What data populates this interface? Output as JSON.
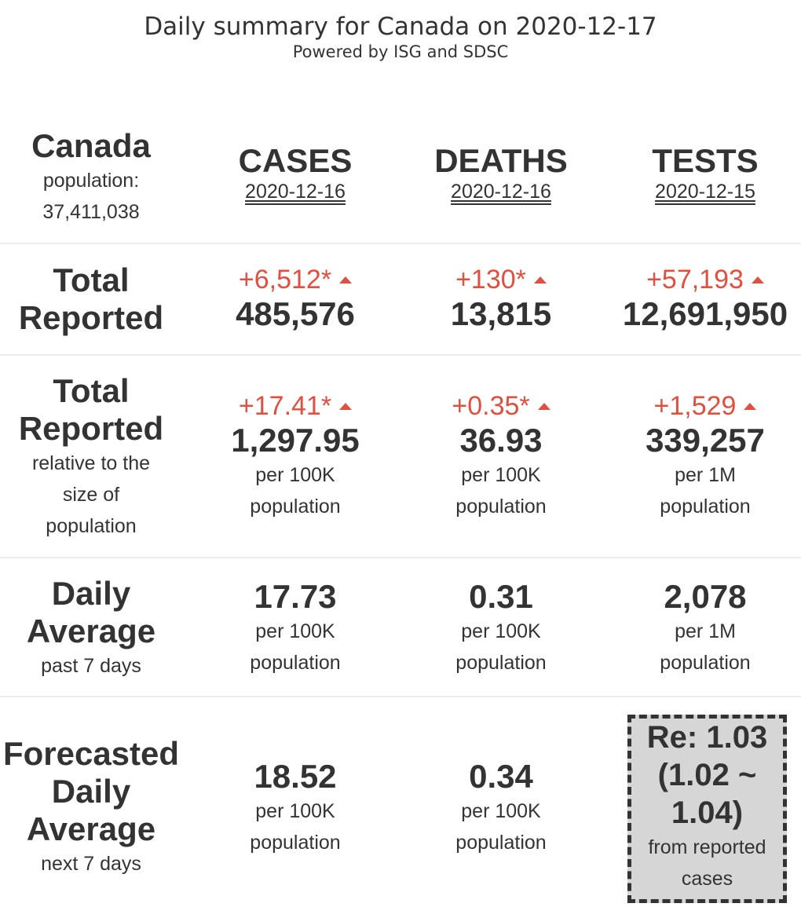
{
  "header": {
    "title": "Daily summary for Canada on 2020-12-17",
    "subtitle": "Powered by ISG and SDSC"
  },
  "region": {
    "name": "Canada",
    "population_label": "population:",
    "population": "37,411,038"
  },
  "columns": [
    {
      "name": "CASES",
      "date": "2020-12-16"
    },
    {
      "name": "DEATHS",
      "date": "2020-12-16"
    },
    {
      "name": "TESTS",
      "date": "2020-12-15"
    }
  ],
  "total_reported": {
    "label_line1": "Total",
    "label_line2": "Reported",
    "cases": {
      "delta": "+6,512*",
      "value": "485,576"
    },
    "deaths": {
      "delta": "+130*",
      "value": "13,815"
    },
    "tests": {
      "delta": "+57,193",
      "value": "12,691,950"
    }
  },
  "relative": {
    "label_line1": "Total",
    "label_line2": "Reported",
    "sub1": "relative to the",
    "sub2": "size of",
    "sub3": "population",
    "cases": {
      "delta": "+17.41*",
      "value": "1,297.95",
      "unit": "per 100K",
      "unit2": "population"
    },
    "deaths": {
      "delta": "+0.35*",
      "value": "36.93",
      "unit": "per 100K",
      "unit2": "population"
    },
    "tests": {
      "delta": "+1,529",
      "value": "339,257",
      "unit": "per 1M",
      "unit2": "population"
    }
  },
  "daily_average": {
    "label_line1": "Daily",
    "label_line2": "Average",
    "sub": "past 7 days",
    "cases": {
      "value": "17.73",
      "unit": "per 100K",
      "unit2": "population"
    },
    "deaths": {
      "value": "0.31",
      "unit": "per 100K",
      "unit2": "population"
    },
    "tests": {
      "value": "2,078",
      "unit": "per 1M",
      "unit2": "population"
    }
  },
  "forecast": {
    "label_line1": "Forecasted",
    "label_line2": "Daily",
    "label_line3": "Average",
    "sub": "next 7 days",
    "cases": {
      "value": "18.52",
      "unit": "per 100K",
      "unit2": "population"
    },
    "deaths": {
      "value": "0.34",
      "unit": "per 100K",
      "unit2": "population"
    },
    "re": {
      "line1": "Re: 1.03",
      "line2": "(1.02 ~",
      "line3": "1.04)",
      "note1": "from reported",
      "note2": "cases"
    }
  },
  "colors": {
    "increase": "#e05040",
    "text": "#333333",
    "re_box_bg": "#d6d6d6"
  },
  "icons": {
    "increase": "triangle-up-icon"
  }
}
